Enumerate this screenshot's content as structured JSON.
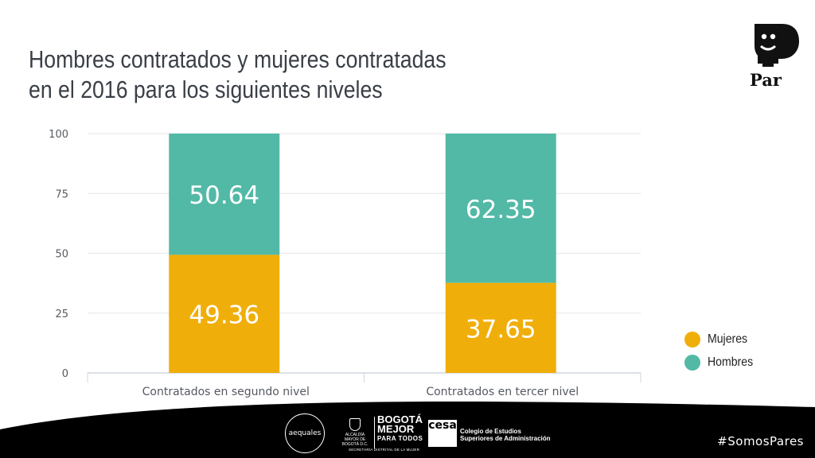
{
  "page": {
    "title_lines": [
      "Hombres contratados y mujeres contratadas",
      "en el 2016 para los siguientes niveles"
    ],
    "brand": {
      "logo_text": "Par"
    },
    "hashtag": "#SomosPares",
    "sponsors": {
      "aequales": "aequales",
      "alcaldia": "ALCALDÍA MAYOR DE BOGOTÁ D.C.",
      "bogota_line1": "BOGOTÁ",
      "bogota_line2": "MEJOR",
      "bogota_line3": "PARA TODOS",
      "secretaria": "SECRETARÍA DISTRITAL DE LA MUJER",
      "cesa_logo": "cesa",
      "cesa_line1": "Colegio de Estudios",
      "cesa_line2": "Superiores de Administración"
    }
  },
  "chart_data": {
    "type": "bar",
    "stacked": true,
    "categories": [
      "Contratados en segundo nivel",
      "Contratados en tercer nivel"
    ],
    "series": [
      {
        "name": "Mujeres",
        "values": [
          49.36,
          37.65
        ],
        "labels": [
          "49.36",
          "37.65"
        ],
        "color": "#f0ae0a"
      },
      {
        "name": "Hombres",
        "values": [
          50.64,
          62.35
        ],
        "labels": [
          "50.64",
          "62.35"
        ],
        "color": "#52b9a6"
      }
    ],
    "yticks": [
      "0",
      "25",
      "50",
      "75",
      "100"
    ],
    "ylim": [
      0,
      100
    ],
    "grid": true,
    "legend": "right",
    "label_color": "#ffffff",
    "grid_color": "#e3e6ea",
    "axis_text_color": "#555a60"
  }
}
